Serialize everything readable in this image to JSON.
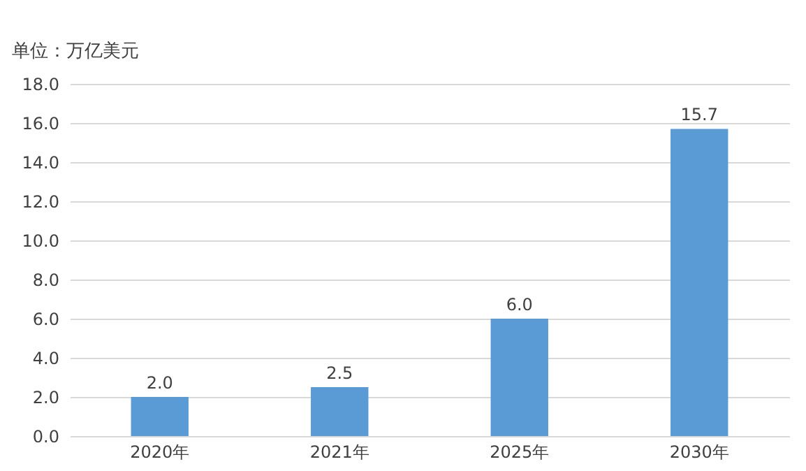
{
  "chart_data": {
    "type": "bar",
    "ylabel": "单位：万亿美元",
    "categories": [
      "2020年",
      "2021年",
      "2025年",
      "2030年"
    ],
    "values": [
      2.0,
      2.5,
      6.0,
      15.7
    ],
    "value_labels": [
      "2.0",
      "2.5",
      "6.0",
      "15.7"
    ],
    "color": "#5b9bd5",
    "ylim": [
      0,
      18
    ],
    "yticks": [
      {
        "value": 0,
        "label": "0.0"
      },
      {
        "value": 2,
        "label": "2.0"
      },
      {
        "value": 4,
        "label": "4.0"
      },
      {
        "value": 6,
        "label": "6.0"
      },
      {
        "value": 8,
        "label": "8.0"
      },
      {
        "value": 10,
        "label": "10.0"
      },
      {
        "value": 12,
        "label": "12.0"
      },
      {
        "value": 14,
        "label": "14.0"
      },
      {
        "value": 16,
        "label": "16.0"
      },
      {
        "value": 18,
        "label": "18.0"
      }
    ],
    "grid": "y"
  }
}
